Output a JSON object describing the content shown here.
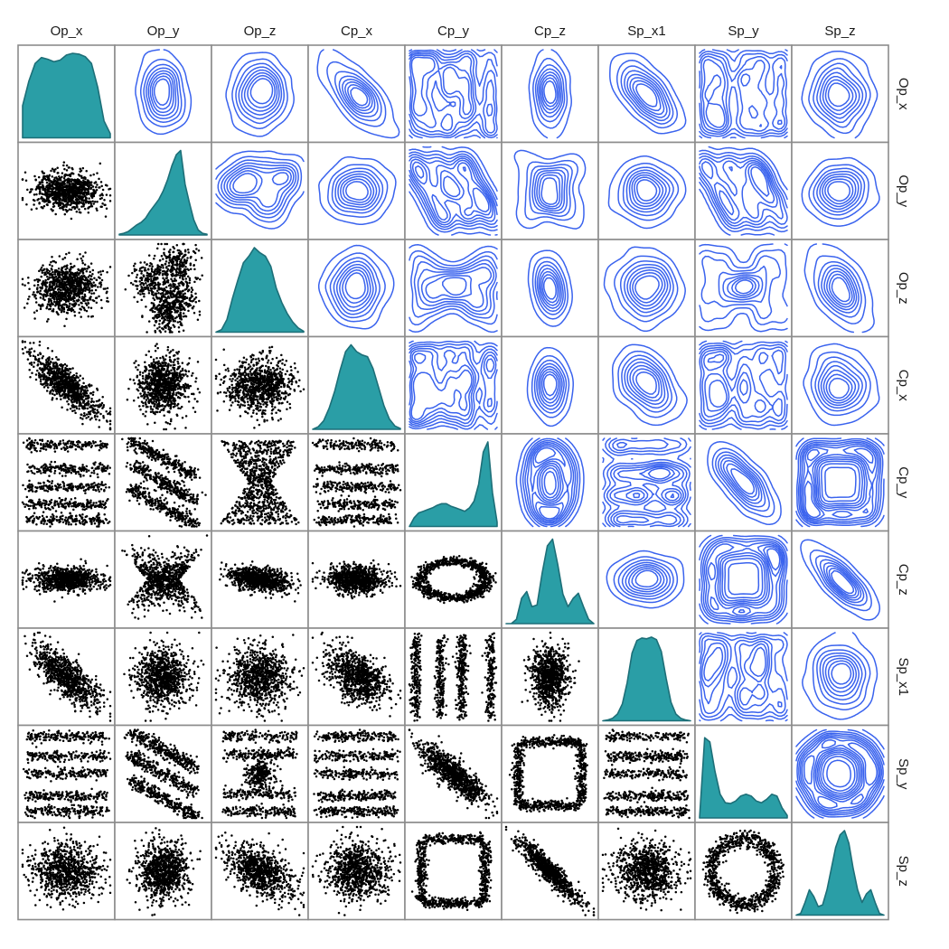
{
  "chart_data": {
    "type": "pairplot",
    "variables": [
      "Op_x",
      "Op_y",
      "Op_z",
      "Cp_x",
      "Cp_y",
      "Cp_z",
      "Sp_x1",
      "Sp_y",
      "Sp_z"
    ],
    "diagonal": {
      "kind": "kde-density",
      "densities": [
        [
          0.38,
          0.67,
          0.88,
          0.95,
          0.93,
          0.9,
          0.92,
          0.98,
          1.0,
          0.99,
          0.96,
          0.88,
          0.6,
          0.2,
          0.05
        ],
        [
          0.01,
          0.02,
          0.04,
          0.08,
          0.12,
          0.15,
          0.2,
          0.28,
          0.35,
          0.42,
          0.52,
          0.65,
          0.82,
          0.95,
          1.0,
          0.6,
          0.38,
          0.18,
          0.06,
          0.02,
          0.01
        ],
        [
          0.0,
          0.03,
          0.15,
          0.4,
          0.62,
          0.82,
          0.9,
          1.0,
          0.94,
          0.9,
          0.78,
          0.52,
          0.35,
          0.22,
          0.12,
          0.05,
          0.01
        ],
        [
          0.0,
          0.03,
          0.1,
          0.25,
          0.45,
          0.7,
          0.92,
          1.0,
          0.92,
          0.88,
          0.86,
          0.72,
          0.5,
          0.28,
          0.12,
          0.04,
          0.01
        ],
        [
          0.0,
          0.1,
          0.16,
          0.18,
          0.2,
          0.22,
          0.25,
          0.27,
          0.27,
          0.24,
          0.22,
          0.2,
          0.18,
          0.22,
          0.3,
          0.5,
          0.88,
          1.0,
          0.4,
          0.05
        ],
        [
          0.0,
          0.0,
          0.05,
          0.3,
          0.38,
          0.2,
          0.22,
          0.6,
          0.92,
          1.0,
          0.7,
          0.35,
          0.2,
          0.3,
          0.36,
          0.2,
          0.05,
          0.0
        ],
        [
          0.0,
          0.01,
          0.03,
          0.08,
          0.2,
          0.45,
          0.8,
          0.95,
          0.98,
          0.97,
          0.99,
          0.96,
          0.82,
          0.5,
          0.22,
          0.08,
          0.03,
          0.01,
          0.0
        ],
        [
          0.0,
          0.95,
          0.9,
          0.55,
          0.28,
          0.18,
          0.17,
          0.2,
          0.26,
          0.28,
          0.26,
          0.2,
          0.18,
          0.22,
          0.28,
          0.26,
          0.12,
          0.03
        ],
        [
          0.0,
          0.02,
          0.15,
          0.3,
          0.22,
          0.1,
          0.12,
          0.3,
          0.55,
          0.8,
          0.95,
          1.0,
          0.85,
          0.55,
          0.3,
          0.15,
          0.25,
          0.3,
          0.15,
          0.02,
          0.0
        ]
      ]
    },
    "lower_triangle": {
      "kind": "scatter",
      "point_count_per_panel": 900
    },
    "upper_triangle": {
      "kind": "kde-contour",
      "contour_levels": 8
    },
    "pair_structure": {
      "Op_y|Op_x": {
        "type": "gauss",
        "r": 0.0,
        "sx": 1.0,
        "sy": 0.55
      },
      "Op_z|Op_x": {
        "type": "gauss",
        "r": 0.05,
        "sx": 1.0,
        "sy": 0.75
      },
      "Op_z|Op_y": {
        "type": "blobs",
        "centers": [
          [
            -0.3,
            0.15
          ],
          [
            0.3,
            0.55
          ],
          [
            0.35,
            -0.25
          ],
          [
            0.05,
            -0.6
          ]
        ]
      },
      "Cp_x|Op_x": {
        "type": "gauss",
        "r": -0.8,
        "sx": 1.0,
        "sy": 0.9
      },
      "Cp_x|Op_y": {
        "type": "gauss",
        "r": 0.0,
        "sx": 0.75,
        "sy": 0.85
      },
      "Cp_x|Op_z": {
        "type": "gauss",
        "r": 0.0,
        "sx": 1.0,
        "sy": 0.8
      },
      "Cp_y|Op_x": {
        "type": "bands",
        "axis": "y",
        "levels": [
          0.85,
          0.3,
          -0.1,
          -0.5,
          -0.85
        ]
      },
      "Cp_y|Op_y": {
        "type": "diagbands"
      },
      "Cp_y|Op_z": {
        "type": "hourglass"
      },
      "Cp_y|Cp_x": {
        "type": "bands",
        "axis": "y",
        "levels": [
          0.85,
          0.3,
          -0.1,
          -0.5,
          -0.85
        ]
      },
      "Cp_z|Op_x": {
        "type": "gauss",
        "r": 0.0,
        "sx": 1.0,
        "sy": 0.35
      },
      "Cp_z|Op_y": {
        "type": "hourglass-flat"
      },
      "Cp_z|Op_z": {
        "type": "gauss",
        "r": -0.35,
        "sx": 0.9,
        "sy": 0.35
      },
      "Cp_z|Cp_x": {
        "type": "gauss",
        "r": 0.0,
        "sx": 0.85,
        "sy": 0.4
      },
      "Cp_z|Cp_y": {
        "type": "ring",
        "rx": 0.75,
        "ry": 0.42
      },
      "Sp_x1|Op_x": {
        "type": "gauss",
        "r": -0.75,
        "sx": 1.0,
        "sy": 0.9
      },
      "Sp_x1|Op_y": {
        "type": "gauss",
        "r": 0.0,
        "sx": 0.8,
        "sy": 0.85
      },
      "Sp_x1|Op_z": {
        "type": "gauss",
        "r": 0.0,
        "sx": 0.95,
        "sy": 0.85
      },
      "Sp_x1|Cp_x": {
        "type": "gauss",
        "r": -0.45,
        "sx": 0.9,
        "sy": 0.85
      },
      "Sp_x1|Cp_y": {
        "type": "bands",
        "axis": "x",
        "levels": [
          -0.85,
          -0.3,
          0.2,
          0.85
        ]
      },
      "Sp_x1|Cp_z": {
        "type": "gauss",
        "r": 0.0,
        "sx": 0.55,
        "sy": 0.9
      },
      "Sp_y|Op_x": {
        "type": "bands",
        "axis": "y",
        "levels": [
          0.85,
          0.4,
          0.0,
          -0.5,
          -0.85
        ]
      },
      "Sp_y|Op_y": {
        "type": "diagbands"
      },
      "Sp_y|Op_z": {
        "type": "ringcenter"
      },
      "Sp_y|Cp_x": {
        "type": "bands",
        "axis": "y",
        "levels": [
          0.85,
          0.4,
          0.0,
          -0.5,
          -0.85
        ]
      },
      "Sp_y|Cp_y": {
        "type": "gauss",
        "r": -0.85,
        "sx": 1.0,
        "sy": 0.9
      },
      "Sp_y|Cp_z": {
        "type": "square"
      },
      "Sp_y|Sp_x1": {
        "type": "bands",
        "axis": "y",
        "levels": [
          0.85,
          0.4,
          0.0,
          -0.5,
          -0.85
        ]
      },
      "Sp_z|Op_x": {
        "type": "gauss",
        "r": 0.0,
        "sx": 1.0,
        "sy": 0.8
      },
      "Sp_z|Op_y": {
        "type": "gauss",
        "r": 0.0,
        "sx": 0.75,
        "sy": 0.85
      },
      "Sp_z|Op_z": {
        "type": "gauss",
        "r": -0.5,
        "sx": 1.0,
        "sy": 0.8
      },
      "Sp_z|Cp_x": {
        "type": "gauss",
        "r": 0.0,
        "sx": 0.95,
        "sy": 0.85
      },
      "Sp_z|Cp_y": {
        "type": "square"
      },
      "Sp_z|Cp_z": {
        "type": "gauss",
        "r": -0.92,
        "sx": 0.9,
        "sy": 0.9
      },
      "Sp_z|Sp_x1": {
        "type": "gauss",
        "r": 0.0,
        "sx": 0.95,
        "sy": 0.85
      },
      "Sp_z|Sp_y": {
        "type": "ring",
        "rx": 0.75,
        "ry": 0.75
      }
    },
    "grid": false,
    "legend": "none"
  },
  "colors": {
    "density_fill": "#2a9ea6",
    "density_line": "#1d6f78",
    "contour": "#3a63ee",
    "points": "#000000",
    "frame": "#8c8c8c",
    "label": "#1a1a1a"
  }
}
